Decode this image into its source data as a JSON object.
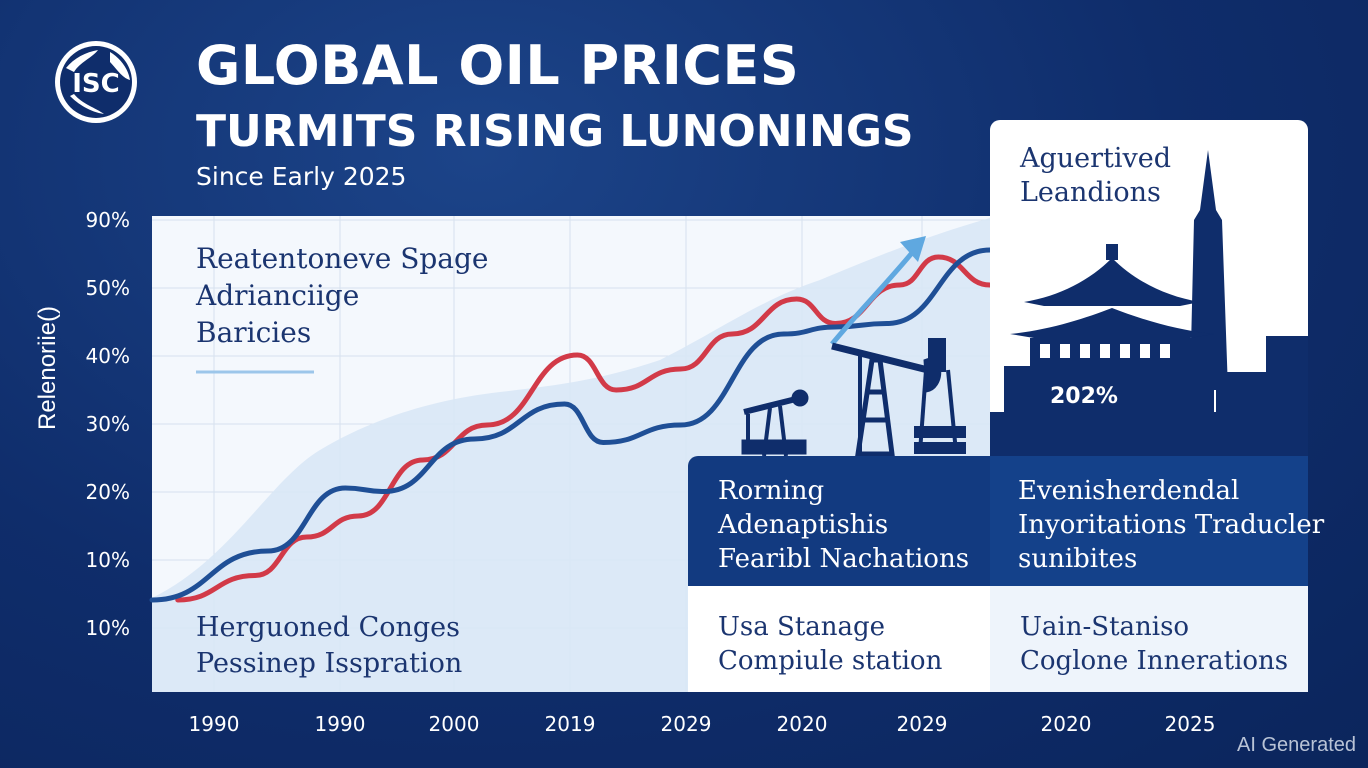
{
  "header": {
    "logo_text": "ISC",
    "title": "GLOBAL OIL PRICES",
    "subtitle": "TURMITS RISING LUNONINGS",
    "since": "Since Early 2025"
  },
  "colors": {
    "background": "#0f2d6b",
    "red_series": "#d23a48",
    "blue_series": "#1f4f96",
    "light_area": "#dbe8f6",
    "arrow": "#5fa8e0",
    "navy": "#0f2d6b"
  },
  "chart_data": {
    "type": "line",
    "title": "GLOBAL OIL PRICES",
    "ylabel": "Relenoriie()",
    "xlabel": "",
    "y_tick_labels": [
      "90%",
      "50%",
      "40%",
      "30%",
      "20%",
      "10%",
      "10%"
    ],
    "x_tick_labels": [
      "1990",
      "1990",
      "2000",
      "2019",
      "2029",
      "2020",
      "2029",
      "2020",
      "2025"
    ],
    "grid": true,
    "series": [
      {
        "color": "#d23a48",
        "points": [
          [
            0.2,
            5
          ],
          [
            0.8,
            8.5
          ],
          [
            1.2,
            14
          ],
          [
            1.6,
            17
          ],
          [
            2.1,
            25
          ],
          [
            2.6,
            30
          ],
          [
            3.3,
            40
          ],
          [
            3.6,
            35
          ],
          [
            4.1,
            38
          ],
          [
            4.5,
            43
          ],
          [
            5.0,
            48
          ],
          [
            5.3,
            44.5
          ],
          [
            5.8,
            50
          ],
          [
            6.1,
            54
          ],
          [
            6.5,
            50
          ]
        ]
      },
      {
        "color": "#1f4f96",
        "points": [
          [
            0.0,
            5
          ],
          [
            0.9,
            12
          ],
          [
            1.5,
            21
          ],
          [
            1.8,
            20.5
          ],
          [
            2.5,
            28
          ],
          [
            3.2,
            33
          ],
          [
            3.5,
            27.5
          ],
          [
            4.1,
            30
          ],
          [
            4.9,
            43
          ],
          [
            5.3,
            44
          ],
          [
            5.7,
            44.5
          ],
          [
            6.5,
            55
          ]
        ]
      }
    ]
  },
  "panels": {
    "top_left": [
      "Reatentoneve Spage",
      "Adrianciige",
      "Baricies"
    ],
    "bottom_left": [
      "Herguoned Conges",
      "Pessinep Isspration"
    ],
    "right_top_label": [
      "Aguertived",
      "Leandions"
    ],
    "building_value": "202%",
    "mid_dark_left": [
      "Rorning",
      "Adenaptishis",
      "Fearibl Nachations"
    ],
    "mid_dark_right": [
      "Evenisherdendal",
      "Inyoritations Traducler",
      "sunibites"
    ],
    "bottom_mid": [
      "Usa Stanage",
      "Compiule station"
    ],
    "bottom_right": [
      "Uain-Staniso",
      "Coglone Innerations"
    ]
  },
  "icons": [
    "globe-logo-icon",
    "pumpjack-icon",
    "oil-derrick-icon",
    "pagoda-icon",
    "skyscraper-icon",
    "trend-arrow-icon"
  ],
  "watermark": "AI Generated"
}
